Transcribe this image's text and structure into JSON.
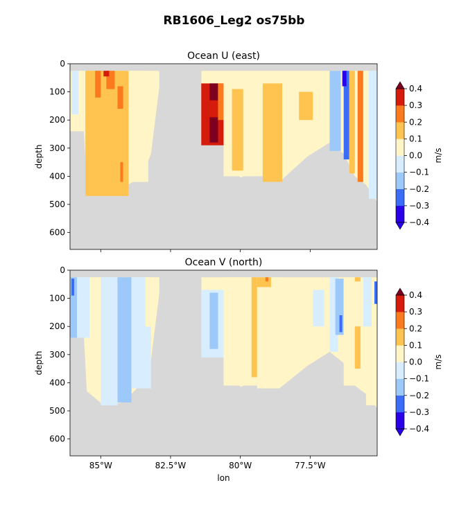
{
  "figure": {
    "title": "RB1606_Leg2 os75bb"
  },
  "chart_data": [
    {
      "type": "heatmap",
      "title": "Ocean U (east)",
      "ylabel": "depth",
      "xlabel": "",
      "colorbar_label": "m/s",
      "xlim": [
        -86.1,
        -75.1
      ],
      "ylim": [
        660,
        0
      ],
      "y_ticks": [
        0,
        100,
        200,
        300,
        400,
        500,
        600
      ],
      "x_ticks": [
        -85,
        -82.5,
        -80,
        -77.5
      ],
      "x_tick_labels": [
        "",
        "",
        "",
        ""
      ],
      "levels": [
        -0.4,
        -0.3,
        -0.2,
        -0.1,
        0.0,
        0.1,
        0.2,
        0.3,
        0.4
      ],
      "level_labels": [
        "−0.4",
        "−0.3",
        "−0.2",
        "−0.1",
        "0.0",
        "0.1",
        "0.2",
        "0.3",
        "0.4"
      ],
      "level_colors": [
        "#2a00e8",
        "#3b6cf8",
        "#9cc9fa",
        "#d8eefe",
        "#fff5c6",
        "#ffc350",
        "#fc7a1e",
        "#d51b0c"
      ],
      "under_color": "#2a00e8",
      "over_color": "#7e0020",
      "nodata_color": "#d8d8d8",
      "data_extent": [
        {
          "lon": -86.1,
          "bottom": 240
        },
        {
          "lon": -85.6,
          "bottom": 240
        },
        {
          "lon": -85.5,
          "bottom": 430
        },
        {
          "lon": -84.9,
          "bottom": 470
        },
        {
          "lon": -84.2,
          "bottom": 440
        },
        {
          "lon": -83.5,
          "bottom": 400
        },
        {
          "lon": -83.2,
          "bottom": 320
        },
        {
          "lon": -82.9,
          "bottom": 80
        },
        {
          "lon": -81.4,
          "bottom": 60
        },
        {
          "lon": -81.3,
          "bottom": 190
        },
        {
          "lon": -80.6,
          "bottom": 290
        },
        {
          "lon": -80.0,
          "bottom": 405
        },
        {
          "lon": -79.3,
          "bottom": 375
        },
        {
          "lon": -78.6,
          "bottom": 420
        },
        {
          "lon": -77.6,
          "bottom": 330
        },
        {
          "lon": -76.8,
          "bottom": 280
        },
        {
          "lon": -76.3,
          "bottom": 320
        },
        {
          "lon": -75.9,
          "bottom": 400
        },
        {
          "lon": -75.5,
          "bottom": 430
        },
        {
          "lon": -75.1,
          "bottom": 490
        }
      ],
      "bands": [
        {
          "lon": [
            -86.05,
            -85.8
          ],
          "depth": [
            25,
            180
          ],
          "value": -0.05
        },
        {
          "lon": [
            -85.8,
            -85.55
          ],
          "depth": [
            25,
            240
          ],
          "value": 0.05
        },
        {
          "lon": [
            -85.55,
            -84.0
          ],
          "depth": [
            25,
            470
          ],
          "value": 0.15
        },
        {
          "lon": [
            -84.0,
            -83.3
          ],
          "depth": [
            25,
            420
          ],
          "value": 0.05
        },
        {
          "lon": [
            -84.8,
            -84.5
          ],
          "depth": [
            25,
            90
          ],
          "value": 0.25
        },
        {
          "lon": [
            -85.2,
            -85.0
          ],
          "depth": [
            25,
            120
          ],
          "value": 0.25
        },
        {
          "lon": [
            -84.4,
            -84.2
          ],
          "depth": [
            80,
            160
          ],
          "value": 0.25
        },
        {
          "lon": [
            -84.3,
            -84.2
          ],
          "depth": [
            350,
            420
          ],
          "value": 0.25
        },
        {
          "lon": [
            -84.9,
            -84.7
          ],
          "depth": [
            25,
            45
          ],
          "value": 0.35
        },
        {
          "lon": [
            -81.4,
            -80.6
          ],
          "depth": [
            70,
            290
          ],
          "value": 0.35
        },
        {
          "lon": [
            -81.1,
            -80.8
          ],
          "depth": [
            70,
            130
          ],
          "value": 0.45
        },
        {
          "lon": [
            -81.1,
            -80.8
          ],
          "depth": [
            190,
            280
          ],
          "value": 0.45
        },
        {
          "lon": [
            -80.8,
            -80.6
          ],
          "depth": [
            70,
            200
          ],
          "value": 0.25
        },
        {
          "lon": [
            -80.6,
            -79.2
          ],
          "depth": [
            70,
            400
          ],
          "value": 0.05
        },
        {
          "lon": [
            -80.3,
            -79.9
          ],
          "depth": [
            90,
            380
          ],
          "value": 0.15
        },
        {
          "lon": [
            -79.2,
            -78.5
          ],
          "depth": [
            70,
            420
          ],
          "value": 0.15
        },
        {
          "lon": [
            -78.5,
            -77.6
          ],
          "depth": [
            70,
            330
          ],
          "value": 0.05
        },
        {
          "lon": [
            -77.9,
            -77.4
          ],
          "depth": [
            100,
            200
          ],
          "value": 0.15
        },
        {
          "lon": [
            -77.4,
            -76.8
          ],
          "depth": [
            70,
            280
          ],
          "value": 0.05
        },
        {
          "lon": [
            -76.8,
            -76.4
          ],
          "depth": [
            25,
            310
          ],
          "value": -0.15
        },
        {
          "lon": [
            -76.3,
            -76.1
          ],
          "depth": [
            25,
            340
          ],
          "value": -0.25
        },
        {
          "lon": [
            -76.35,
            -76.2
          ],
          "depth": [
            25,
            80
          ],
          "value": -0.45
        },
        {
          "lon": [
            -76.1,
            -75.9
          ],
          "depth": [
            25,
            390
          ],
          "value": 0.15
        },
        {
          "lon": [
            -75.8,
            -75.6
          ],
          "depth": [
            25,
            420
          ],
          "value": 0.25
        },
        {
          "lon": [
            -75.6,
            -75.4
          ],
          "depth": [
            25,
            400
          ],
          "value": 0.05
        },
        {
          "lon": [
            -75.4,
            -75.1
          ],
          "depth": [
            25,
            480
          ],
          "value": -0.05
        }
      ]
    },
    {
      "type": "heatmap",
      "title": "Ocean V (north)",
      "ylabel": "depth",
      "xlabel": "lon",
      "colorbar_label": "m/s",
      "xlim": [
        -86.1,
        -75.1
      ],
      "ylim": [
        660,
        0
      ],
      "y_ticks": [
        0,
        100,
        200,
        300,
        400,
        500,
        600
      ],
      "x_ticks": [
        -85,
        -82.5,
        -80,
        -77.5
      ],
      "x_tick_labels": [
        "85°W",
        "82.5°W",
        "80°W",
        "77.5°W"
      ],
      "levels": [
        -0.4,
        -0.3,
        -0.2,
        -0.1,
        0.0,
        0.1,
        0.2,
        0.3,
        0.4
      ],
      "level_labels": [
        "−0.4",
        "−0.3",
        "−0.2",
        "−0.1",
        "0.0",
        "0.1",
        "0.2",
        "0.3",
        "0.4"
      ],
      "level_colors": [
        "#2a00e8",
        "#3b6cf8",
        "#9cc9fa",
        "#d8eefe",
        "#fff5c6",
        "#ffc350",
        "#fc7a1e",
        "#d51b0c"
      ],
      "under_color": "#2a00e8",
      "over_color": "#7e0020",
      "nodata_color": "#d8d8d8",
      "data_extent": [
        {
          "lon": -86.1,
          "bottom": 240
        },
        {
          "lon": -85.6,
          "bottom": 240
        },
        {
          "lon": -85.5,
          "bottom": 430
        },
        {
          "lon": -84.9,
          "bottom": 480
        },
        {
          "lon": -84.2,
          "bottom": 470
        },
        {
          "lon": -83.5,
          "bottom": 400
        },
        {
          "lon": -83.2,
          "bottom": 320
        },
        {
          "lon": -82.9,
          "bottom": 80
        },
        {
          "lon": -81.4,
          "bottom": 70
        },
        {
          "lon": -81.3,
          "bottom": 200
        },
        {
          "lon": -80.6,
          "bottom": 310
        },
        {
          "lon": -80.0,
          "bottom": 415
        },
        {
          "lon": -79.3,
          "bottom": 390
        },
        {
          "lon": -78.6,
          "bottom": 420
        },
        {
          "lon": -77.6,
          "bottom": 340
        },
        {
          "lon": -76.8,
          "bottom": 290
        },
        {
          "lon": -76.3,
          "bottom": 330
        },
        {
          "lon": -75.9,
          "bottom": 410
        },
        {
          "lon": -75.5,
          "bottom": 440
        },
        {
          "lon": -75.1,
          "bottom": 490
        }
      ],
      "bands": [
        {
          "lon": [
            -86.1,
            -85.85
          ],
          "depth": [
            25,
            240
          ],
          "value": -0.15
        },
        {
          "lon": [
            -86.05,
            -85.95
          ],
          "depth": [
            30,
            90
          ],
          "value": -0.25
        },
        {
          "lon": [
            -85.85,
            -85.4
          ],
          "depth": [
            25,
            240
          ],
          "value": -0.05
        },
        {
          "lon": [
            -85.4,
            -85.0
          ],
          "depth": [
            25,
            300
          ],
          "value": 0.05
        },
        {
          "lon": [
            -85.0,
            -84.4
          ],
          "depth": [
            25,
            480
          ],
          "value": -0.05
        },
        {
          "lon": [
            -84.4,
            -83.9
          ],
          "depth": [
            25,
            470
          ],
          "value": -0.15
        },
        {
          "lon": [
            -83.9,
            -83.2
          ],
          "depth": [
            25,
            420
          ],
          "value": -0.05
        },
        {
          "lon": [
            -83.4,
            -83.2
          ],
          "depth": [
            25,
            200
          ],
          "value": 0.05
        },
        {
          "lon": [
            -81.4,
            -80.6
          ],
          "depth": [
            70,
            310
          ],
          "value": -0.05
        },
        {
          "lon": [
            -81.1,
            -80.8
          ],
          "depth": [
            80,
            280
          ],
          "value": -0.15
        },
        {
          "lon": [
            -80.6,
            -79.4
          ],
          "depth": [
            25,
            410
          ],
          "value": 0.05
        },
        {
          "lon": [
            -79.6,
            -79.4
          ],
          "depth": [
            25,
            380
          ],
          "value": 0.15
        },
        {
          "lon": [
            -79.4,
            -78.6
          ],
          "depth": [
            25,
            420
          ],
          "value": 0.05
        },
        {
          "lon": [
            -79.4,
            -78.9
          ],
          "depth": [
            25,
            60
          ],
          "value": 0.15
        },
        {
          "lon": [
            -79.1,
            -79.0
          ],
          "depth": [
            25,
            40
          ],
          "value": 0.25
        },
        {
          "lon": [
            -78.6,
            -77.6
          ],
          "depth": [
            60,
            340
          ],
          "value": 0.05
        },
        {
          "lon": [
            -77.4,
            -77.0
          ],
          "depth": [
            70,
            200
          ],
          "value": -0.05
        },
        {
          "lon": [
            -76.8,
            -76.5
          ],
          "depth": [
            25,
            290
          ],
          "value": -0.05
        },
        {
          "lon": [
            -76.6,
            -76.3
          ],
          "depth": [
            30,
            230
          ],
          "value": -0.15
        },
        {
          "lon": [
            -76.45,
            -76.35
          ],
          "depth": [
            160,
            220
          ],
          "value": -0.25
        },
        {
          "lon": [
            -76.3,
            -75.7
          ],
          "depth": [
            25,
            410
          ],
          "value": 0.05
        },
        {
          "lon": [
            -75.9,
            -75.7
          ],
          "depth": [
            200,
            350
          ],
          "value": 0.15
        },
        {
          "lon": [
            -75.9,
            -75.7
          ],
          "depth": [
            25,
            40
          ],
          "value": 0.15
        },
        {
          "lon": [
            -75.6,
            -75.3
          ],
          "depth": [
            25,
            200
          ],
          "value": -0.05
        },
        {
          "lon": [
            -75.5,
            -75.1
          ],
          "depth": [
            220,
            480
          ],
          "value": 0.05
        },
        {
          "lon": [
            -75.2,
            -75.1
          ],
          "depth": [
            40,
            120
          ],
          "value": -0.25
        }
      ]
    }
  ]
}
